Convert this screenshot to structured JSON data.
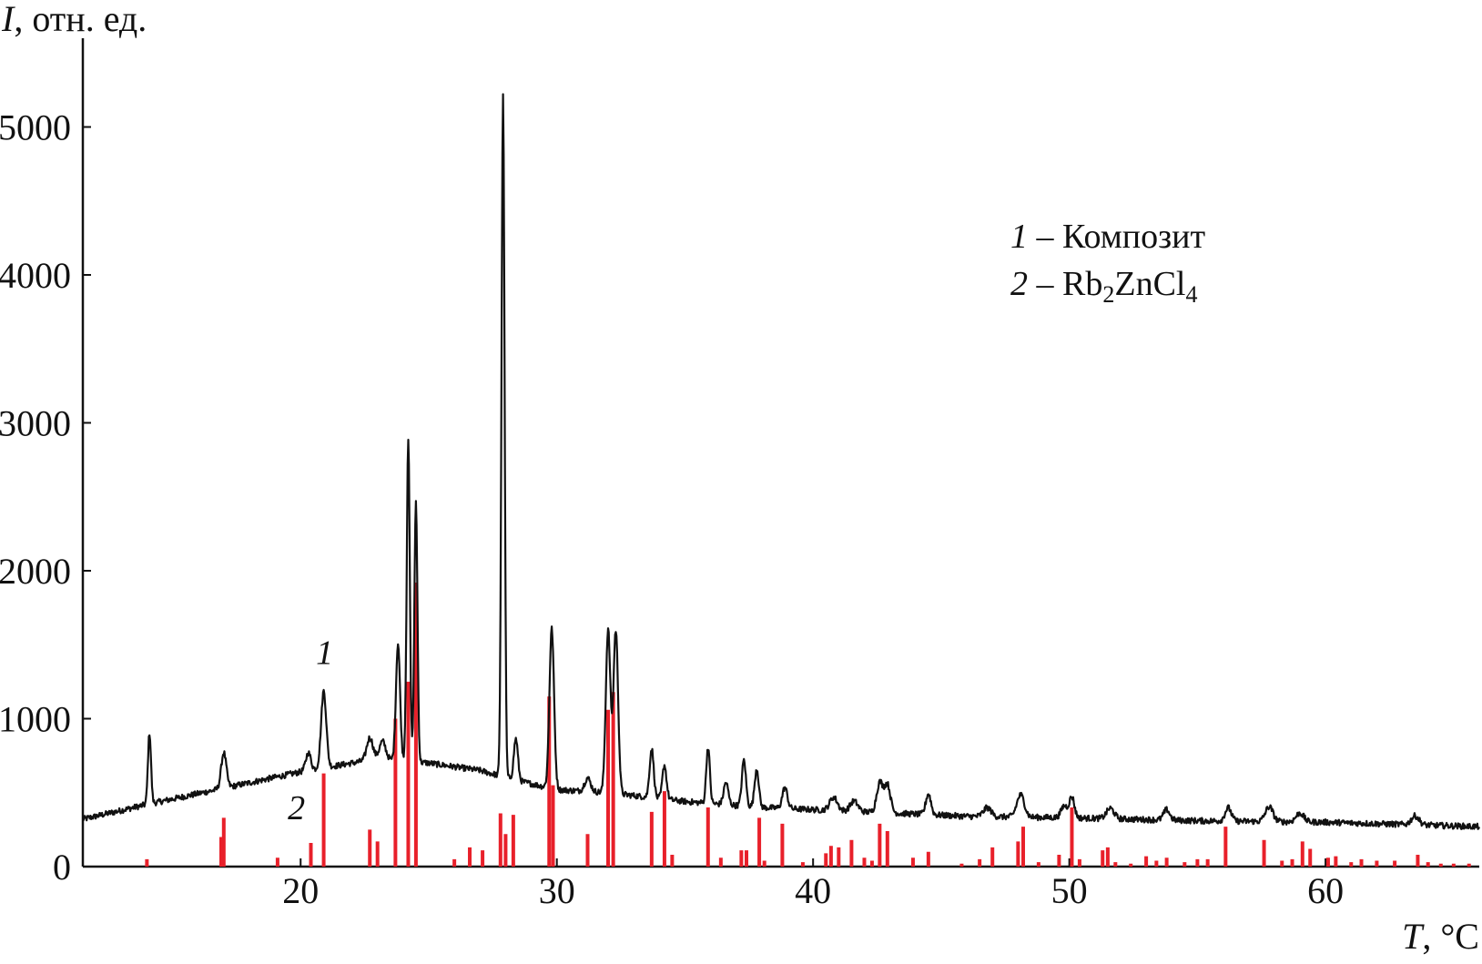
{
  "chart_data": {
    "type": "line",
    "xlabel_var": "T",
    "xlabel_unit": ", °C",
    "ylabel_var": "I",
    "ylabel_unit": ", отн. ед.",
    "xlim": [
      11.5,
      66
    ],
    "ylim": [
      0,
      5600
    ],
    "xticks": [
      20,
      30,
      40,
      50,
      60
    ],
    "yticks": [
      0,
      1000,
      2000,
      3000,
      4000,
      5000
    ],
    "grid": false,
    "legend": {
      "placement": "top-right",
      "entries": [
        {
          "num": "1",
          "text": "Композит"
        },
        {
          "num": "2",
          "text": "Rb",
          "sub1": "2",
          "mid": "ZnCl",
          "sub2": "4"
        }
      ]
    },
    "curve_labels": [
      {
        "text": "1",
        "x": 20.6,
        "y": 1370
      },
      {
        "text": "2",
        "x": 19.5,
        "y": 320
      }
    ],
    "series": [
      {
        "type": "line",
        "color": "#111111",
        "baseline": [
          [
            11.5,
            320
          ],
          [
            14,
            420
          ],
          [
            17,
            530
          ],
          [
            20,
            640
          ],
          [
            23,
            730
          ],
          [
            25,
            700
          ],
          [
            27,
            650
          ],
          [
            28.5,
            580
          ],
          [
            30,
            520
          ],
          [
            32,
            500
          ],
          [
            35,
            440
          ],
          [
            38,
            400
          ],
          [
            42,
            370
          ],
          [
            46,
            340
          ],
          [
            50,
            330
          ],
          [
            55,
            310
          ],
          [
            60,
            300
          ],
          [
            66,
            270
          ]
        ],
        "peaks": [
          {
            "x": 14.1,
            "h": 480,
            "w": 0.06
          },
          {
            "x": 17.0,
            "h": 240,
            "w": 0.1
          },
          {
            "x": 20.3,
            "h": 120,
            "w": 0.1
          },
          {
            "x": 20.9,
            "h": 520,
            "w": 0.1
          },
          {
            "x": 22.7,
            "h": 150,
            "w": 0.12
          },
          {
            "x": 23.2,
            "h": 120,
            "w": 0.12
          },
          {
            "x": 23.8,
            "h": 790,
            "w": 0.08
          },
          {
            "x": 24.2,
            "h": 2170,
            "w": 0.06
          },
          {
            "x": 24.5,
            "h": 1760,
            "w": 0.06
          },
          {
            "x": 27.9,
            "h": 4600,
            "w": 0.06
          },
          {
            "x": 28.4,
            "h": 280,
            "w": 0.08
          },
          {
            "x": 29.8,
            "h": 1080,
            "w": 0.09
          },
          {
            "x": 31.2,
            "h": 90,
            "w": 0.12
          },
          {
            "x": 32.0,
            "h": 1100,
            "w": 0.09
          },
          {
            "x": 32.3,
            "h": 1100,
            "w": 0.09
          },
          {
            "x": 33.7,
            "h": 330,
            "w": 0.08
          },
          {
            "x": 34.2,
            "h": 230,
            "w": 0.08
          },
          {
            "x": 35.9,
            "h": 380,
            "w": 0.07
          },
          {
            "x": 36.6,
            "h": 150,
            "w": 0.09
          },
          {
            "x": 37.3,
            "h": 310,
            "w": 0.08
          },
          {
            "x": 37.8,
            "h": 260,
            "w": 0.08
          },
          {
            "x": 38.9,
            "h": 140,
            "w": 0.1
          },
          {
            "x": 40.8,
            "h": 90,
            "w": 0.15
          },
          {
            "x": 41.6,
            "h": 70,
            "w": 0.15
          },
          {
            "x": 42.6,
            "h": 200,
            "w": 0.12
          },
          {
            "x": 42.9,
            "h": 190,
            "w": 0.12
          },
          {
            "x": 44.5,
            "h": 140,
            "w": 0.1
          },
          {
            "x": 46.8,
            "h": 60,
            "w": 0.15
          },
          {
            "x": 48.1,
            "h": 150,
            "w": 0.15
          },
          {
            "x": 49.8,
            "h": 80,
            "w": 0.12
          },
          {
            "x": 50.1,
            "h": 140,
            "w": 0.1
          },
          {
            "x": 51.6,
            "h": 70,
            "w": 0.15
          },
          {
            "x": 53.8,
            "h": 70,
            "w": 0.12
          },
          {
            "x": 56.2,
            "h": 90,
            "w": 0.12
          },
          {
            "x": 57.8,
            "h": 100,
            "w": 0.15
          },
          {
            "x": 59.0,
            "h": 60,
            "w": 0.15
          },
          {
            "x": 63.5,
            "h": 60,
            "w": 0.15
          }
        ]
      },
      {
        "type": "stick",
        "color": "#e8202a",
        "sticks": [
          [
            14.0,
            50
          ],
          [
            16.9,
            200
          ],
          [
            17.0,
            330
          ],
          [
            19.1,
            60
          ],
          [
            20.4,
            160
          ],
          [
            20.9,
            630
          ],
          [
            22.7,
            250
          ],
          [
            23.0,
            170
          ],
          [
            23.7,
            1000
          ],
          [
            24.2,
            1250
          ],
          [
            24.5,
            1920
          ],
          [
            26.0,
            50
          ],
          [
            26.6,
            130
          ],
          [
            27.1,
            110
          ],
          [
            27.8,
            360
          ],
          [
            28.0,
            220
          ],
          [
            28.3,
            350
          ],
          [
            29.7,
            1150
          ],
          [
            29.85,
            550
          ],
          [
            31.2,
            220
          ],
          [
            32.0,
            1060
          ],
          [
            32.2,
            1180
          ],
          [
            33.7,
            370
          ],
          [
            34.2,
            510
          ],
          [
            34.5,
            80
          ],
          [
            35.9,
            400
          ],
          [
            36.4,
            60
          ],
          [
            37.2,
            110
          ],
          [
            37.4,
            110
          ],
          [
            37.9,
            330
          ],
          [
            38.1,
            40
          ],
          [
            38.8,
            290
          ],
          [
            39.6,
            30
          ],
          [
            40.5,
            90
          ],
          [
            40.7,
            140
          ],
          [
            41.0,
            130
          ],
          [
            41.5,
            180
          ],
          [
            42.0,
            60
          ],
          [
            42.3,
            40
          ],
          [
            42.6,
            290
          ],
          [
            42.9,
            240
          ],
          [
            43.9,
            60
          ],
          [
            44.5,
            100
          ],
          [
            45.8,
            20
          ],
          [
            46.5,
            50
          ],
          [
            47.0,
            130
          ],
          [
            48.0,
            170
          ],
          [
            48.2,
            270
          ],
          [
            48.8,
            30
          ],
          [
            49.6,
            80
          ],
          [
            50.1,
            400
          ],
          [
            50.4,
            50
          ],
          [
            51.3,
            110
          ],
          [
            51.5,
            130
          ],
          [
            51.8,
            30
          ],
          [
            52.4,
            20
          ],
          [
            53.0,
            70
          ],
          [
            53.4,
            40
          ],
          [
            53.8,
            60
          ],
          [
            54.5,
            30
          ],
          [
            55.0,
            50
          ],
          [
            55.4,
            50
          ],
          [
            56.1,
            270
          ],
          [
            57.6,
            180
          ],
          [
            58.3,
            40
          ],
          [
            58.7,
            50
          ],
          [
            59.1,
            170
          ],
          [
            59.4,
            120
          ],
          [
            60.1,
            60
          ],
          [
            60.4,
            70
          ],
          [
            61.0,
            30
          ],
          [
            61.4,
            50
          ],
          [
            62.0,
            40
          ],
          [
            62.7,
            40
          ],
          [
            63.6,
            80
          ],
          [
            64.0,
            30
          ],
          [
            64.5,
            20
          ],
          [
            65.0,
            20
          ],
          [
            65.6,
            20
          ]
        ]
      }
    ]
  }
}
